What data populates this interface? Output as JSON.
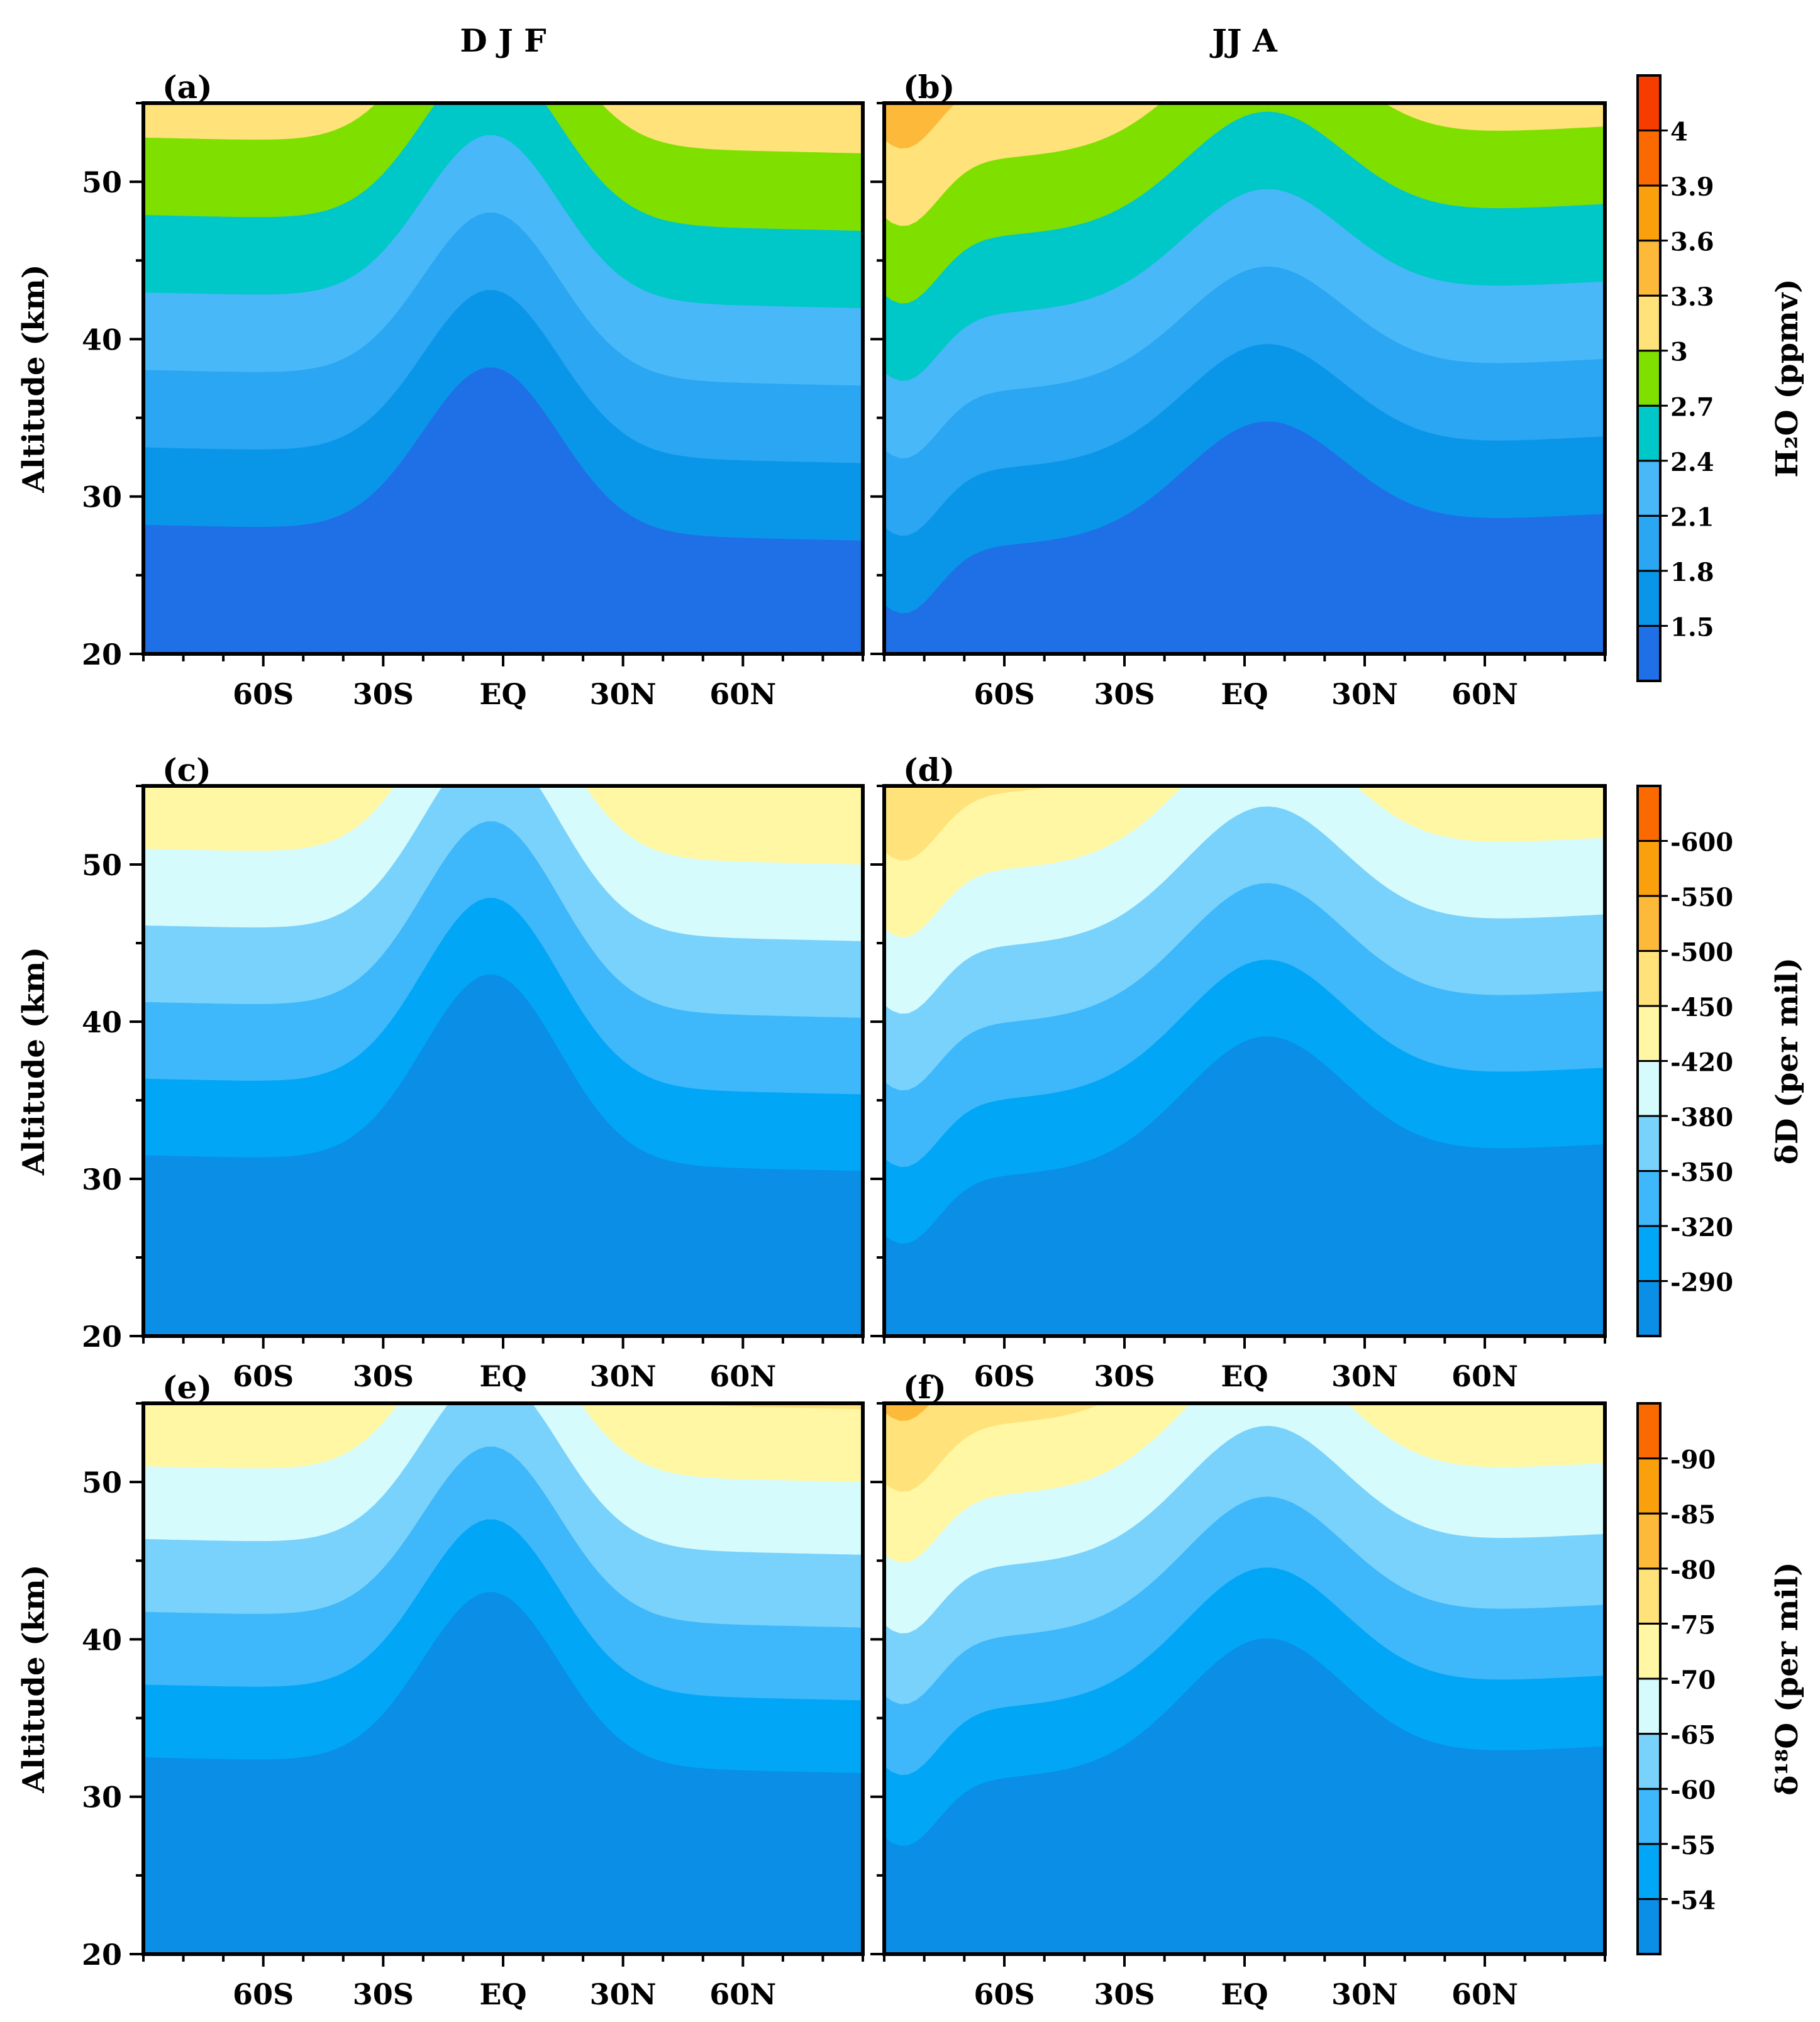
{
  "chart_data": {
    "type": "heatmap",
    "column_titles": [
      "D J F",
      "JJ A"
    ],
    "x_ticks": [
      -60,
      -30,
      0,
      30,
      60
    ],
    "x_tick_labels": [
      "60S",
      "30S",
      "EQ",
      "30N",
      "60N"
    ],
    "xlim": [
      -90,
      90
    ],
    "ylim": [
      20,
      55
    ],
    "y_ticks": [
      20,
      30,
      40,
      50
    ],
    "y_tick_labels": [
      "20",
      "30",
      "40",
      "50"
    ],
    "ylabel": "Altitude (km)",
    "rows": [
      {
        "colorbar_label": "H₂O (ppmv)",
        "levels": [
          "1.5",
          "1.8",
          "2.1",
          "2.4",
          "2.7",
          "3",
          "3.3",
          "3.6",
          "3.9",
          "4"
        ],
        "colors": [
          "#1f6fe6",
          "#0a96e8",
          "#2aa6f2",
          "#49b8f8",
          "#00c8c8",
          "#7fe000",
          "#ffe27a",
          "#fcb93a",
          "#f9a00c",
          "#fb6a00",
          "#f73c00"
        ],
        "panels": [
          {
            "label": "(a)",
            "season": "DJF",
            "top": 52,
            "bottom": 7.7,
            "eq_amp": 10.5,
            "width": 24
          },
          {
            "label": "(b)",
            "season": "JJA",
            "top": 52,
            "bottom": 7.7,
            "eq_amp": 7,
            "width": 28
          }
        ]
      },
      {
        "colorbar_label": "δD (per mil)",
        "levels": [
          "-290",
          "-320",
          "-350",
          "-380",
          "-420",
          "-450",
          "-500",
          "-550",
          "-600"
        ],
        "colors": [
          "#0a8ee6",
          "#02a6f6",
          "#3eb8fa",
          "#79d2fc",
          "#d6fbfd",
          "#fff7a4",
          "#ffe27a",
          "#fcb93a",
          "#f9a00c",
          "#fb6a00"
        ],
        "panels": [
          {
            "label": "(c)",
            "season": "DJF",
            "top": 50,
            "bottom": 11,
            "eq_amp": 12,
            "width": 24
          },
          {
            "label": "(d)",
            "season": "JJA",
            "top": 50,
            "bottom": 11,
            "eq_amp": 8,
            "width": 28
          }
        ]
      },
      {
        "colorbar_label": "δ¹⁸O (per mil)",
        "levels": [
          "-54",
          "-55",
          "-60",
          "-65",
          "-70",
          "-75",
          "-80",
          "-85",
          "-90"
        ],
        "colors": [
          "#0a8ee6",
          "#02a6f6",
          "#3eb8fa",
          "#79d2fc",
          "#d6fbfd",
          "#fff7a4",
          "#ffe27a",
          "#fcb93a",
          "#f9a00c",
          "#fb6a00"
        ],
        "panels": [
          {
            "label": "(e)",
            "season": "DJF",
            "top": 49,
            "bottom": 12,
            "eq_amp": 11,
            "width": 24
          },
          {
            "label": "(f)",
            "season": "JJA",
            "top": 48,
            "bottom": 12,
            "eq_amp": 8,
            "width": 28
          }
        ]
      }
    ]
  }
}
